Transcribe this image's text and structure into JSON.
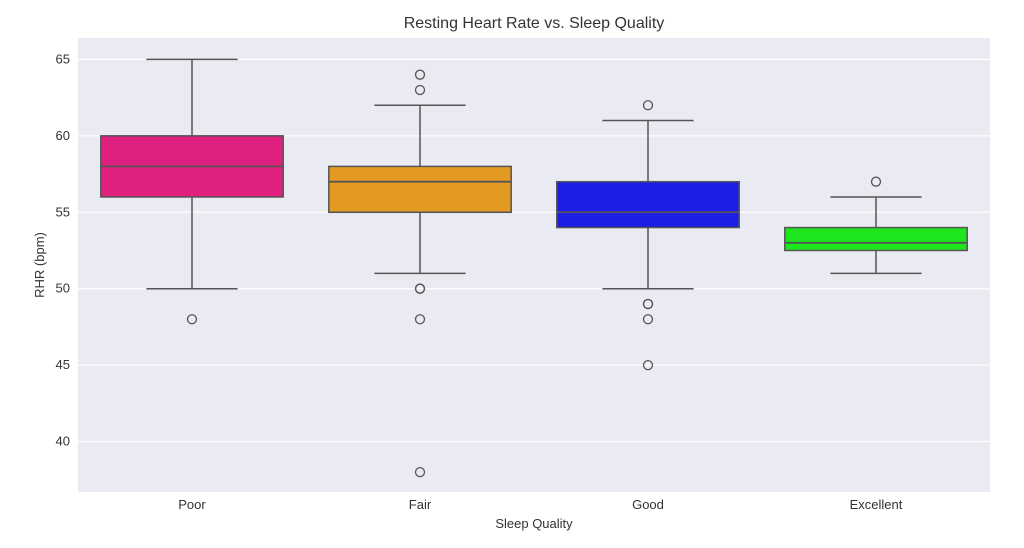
{
  "chart_data": {
    "type": "box",
    "title": "Resting Heart Rate vs. Sleep Quality",
    "xlabel": "Sleep Quality",
    "ylabel": "RHR (bpm)",
    "ylim": [
      36.7,
      66.4
    ],
    "yticks": [
      40,
      45,
      50,
      55,
      60,
      65
    ],
    "grid": true,
    "background": "#eaeaf2",
    "categories": [
      "Poor",
      "Fair",
      "Good",
      "Excellent"
    ],
    "boxes": [
      {
        "category": "Poor",
        "color": "#e0207f",
        "whislo": 50,
        "q1": 56,
        "median": 58,
        "q3": 60,
        "whishi": 65,
        "fliers": [
          48
        ]
      },
      {
        "category": "Fair",
        "color": "#e39a20",
        "whislo": 51,
        "q1": 55,
        "median": 57,
        "q3": 58,
        "whishi": 62,
        "fliers": [
          64,
          63,
          50,
          50,
          48,
          38
        ]
      },
      {
        "category": "Good",
        "color": "#1c1ee6",
        "whislo": 50,
        "q1": 54,
        "median": 55,
        "q3": 57,
        "whishi": 61,
        "fliers": [
          62,
          49,
          49,
          48,
          45
        ]
      },
      {
        "category": "Excellent",
        "color": "#1ee61e",
        "whislo": 51,
        "q1": 52.5,
        "median": 53,
        "q3": 54,
        "whishi": 56,
        "fliers": [
          57
        ]
      }
    ]
  }
}
